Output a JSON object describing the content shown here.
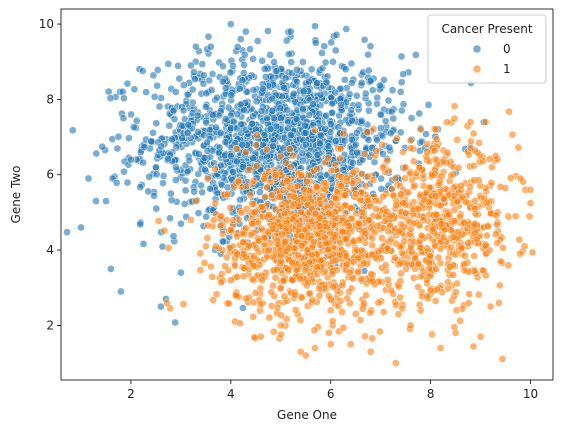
{
  "chart_data": {
    "type": "scatter",
    "title": "",
    "xlabel": "Gene One",
    "ylabel": "Gene Two",
    "xlim": [
      0.6,
      10.45
    ],
    "ylim": [
      0.55,
      10.4
    ],
    "x_ticks": [
      2,
      4,
      6,
      8,
      10
    ],
    "y_ticks": [
      2,
      4,
      6,
      8,
      10
    ],
    "grid": false,
    "legend": {
      "title": "Cancer Present",
      "placement": "top-right"
    },
    "series": [
      {
        "name": "0",
        "color": "#1f77b4",
        "cluster": {
          "mean_x": 4.9,
          "mean_y": 6.9,
          "sd_x": 1.3,
          "sd_y": 1.15,
          "n": 1500
        },
        "points": [
          [
            1.0,
            4.6
          ],
          [
            1.15,
            5.9
          ],
          [
            1.3,
            5.3
          ],
          [
            1.5,
            5.3
          ],
          [
            1.6,
            3.5
          ],
          [
            1.8,
            2.9
          ],
          [
            1.85,
            7.5
          ],
          [
            2.0,
            6.4
          ],
          [
            2.6,
            2.5
          ],
          [
            2.7,
            2.7
          ],
          [
            3.0,
            3.4
          ],
          [
            3.2,
            8.9
          ],
          [
            3.3,
            9.4
          ],
          [
            3.6,
            9.4
          ],
          [
            4.0,
            10.0
          ],
          [
            4.2,
            9.6
          ],
          [
            4.3,
            9.8
          ],
          [
            5.2,
            9.8
          ],
          [
            5.7,
            9.5
          ],
          [
            6.1,
            9.3
          ],
          [
            6.3,
            8.8
          ],
          [
            6.8,
            8.5
          ],
          [
            7.0,
            7.6
          ],
          [
            7.2,
            7.1
          ],
          [
            7.4,
            8.2
          ],
          [
            7.3,
            6.9
          ],
          [
            3.8,
            3.9
          ],
          [
            3.0,
            4.7
          ],
          [
            4.5,
            7.2
          ],
          [
            5.0,
            7.5
          ],
          [
            5.5,
            6.8
          ],
          [
            4.0,
            6.5
          ],
          [
            3.5,
            7.8
          ],
          [
            2.5,
            6.2
          ],
          [
            2.8,
            5.5
          ],
          [
            6.5,
            6.8
          ],
          [
            6.9,
            6.0
          ],
          [
            5.8,
            5.9
          ],
          [
            4.7,
            8.6
          ],
          [
            3.9,
            8.3
          ]
        ]
      },
      {
        "name": "1",
        "color": "#ff7f0e",
        "clusters": [
          {
            "mean_x": 5.6,
            "mean_y": 4.3,
            "sd_x": 0.95,
            "sd_y": 1.0,
            "n": 1050
          },
          {
            "mean_x": 8.2,
            "mean_y": 4.7,
            "sd_x": 0.75,
            "sd_y": 1.05,
            "n": 550
          }
        ],
        "points": [
          [
            3.2,
            4.8
          ],
          [
            3.3,
            5.3
          ],
          [
            3.5,
            4.1
          ],
          [
            3.7,
            4.1
          ],
          [
            4.0,
            3.2
          ],
          [
            4.1,
            2.8
          ],
          [
            4.6,
            1.7
          ],
          [
            5.0,
            2.0
          ],
          [
            5.4,
            1.3
          ],
          [
            5.5,
            1.2
          ],
          [
            6.0,
            1.5
          ],
          [
            6.4,
            1.5
          ],
          [
            6.8,
            1.3
          ],
          [
            7.3,
            1.0
          ],
          [
            7.6,
            2.0
          ],
          [
            8.2,
            1.4
          ],
          [
            8.5,
            1.8
          ],
          [
            9.0,
            1.7
          ],
          [
            9.2,
            2.5
          ],
          [
            9.4,
            3.7
          ],
          [
            9.7,
            4.9
          ],
          [
            9.9,
            5.6
          ],
          [
            10.0,
            5.6
          ],
          [
            9.8,
            5.9
          ],
          [
            9.3,
            6.5
          ],
          [
            9.1,
            7.4
          ],
          [
            8.8,
            7.4
          ],
          [
            7.8,
            7.2
          ],
          [
            8.1,
            7.2
          ],
          [
            7.5,
            6.2
          ],
          [
            4.3,
            6.6
          ],
          [
            4.9,
            6.0
          ],
          [
            5.2,
            6.2
          ],
          [
            6.7,
            5.7
          ],
          [
            6.9,
            3.8
          ],
          [
            7.1,
            3.6
          ],
          [
            7.8,
            2.4
          ],
          [
            6.0,
            2.4
          ],
          [
            5.0,
            3.0
          ],
          [
            4.4,
            4.4
          ]
        ]
      }
    ]
  }
}
